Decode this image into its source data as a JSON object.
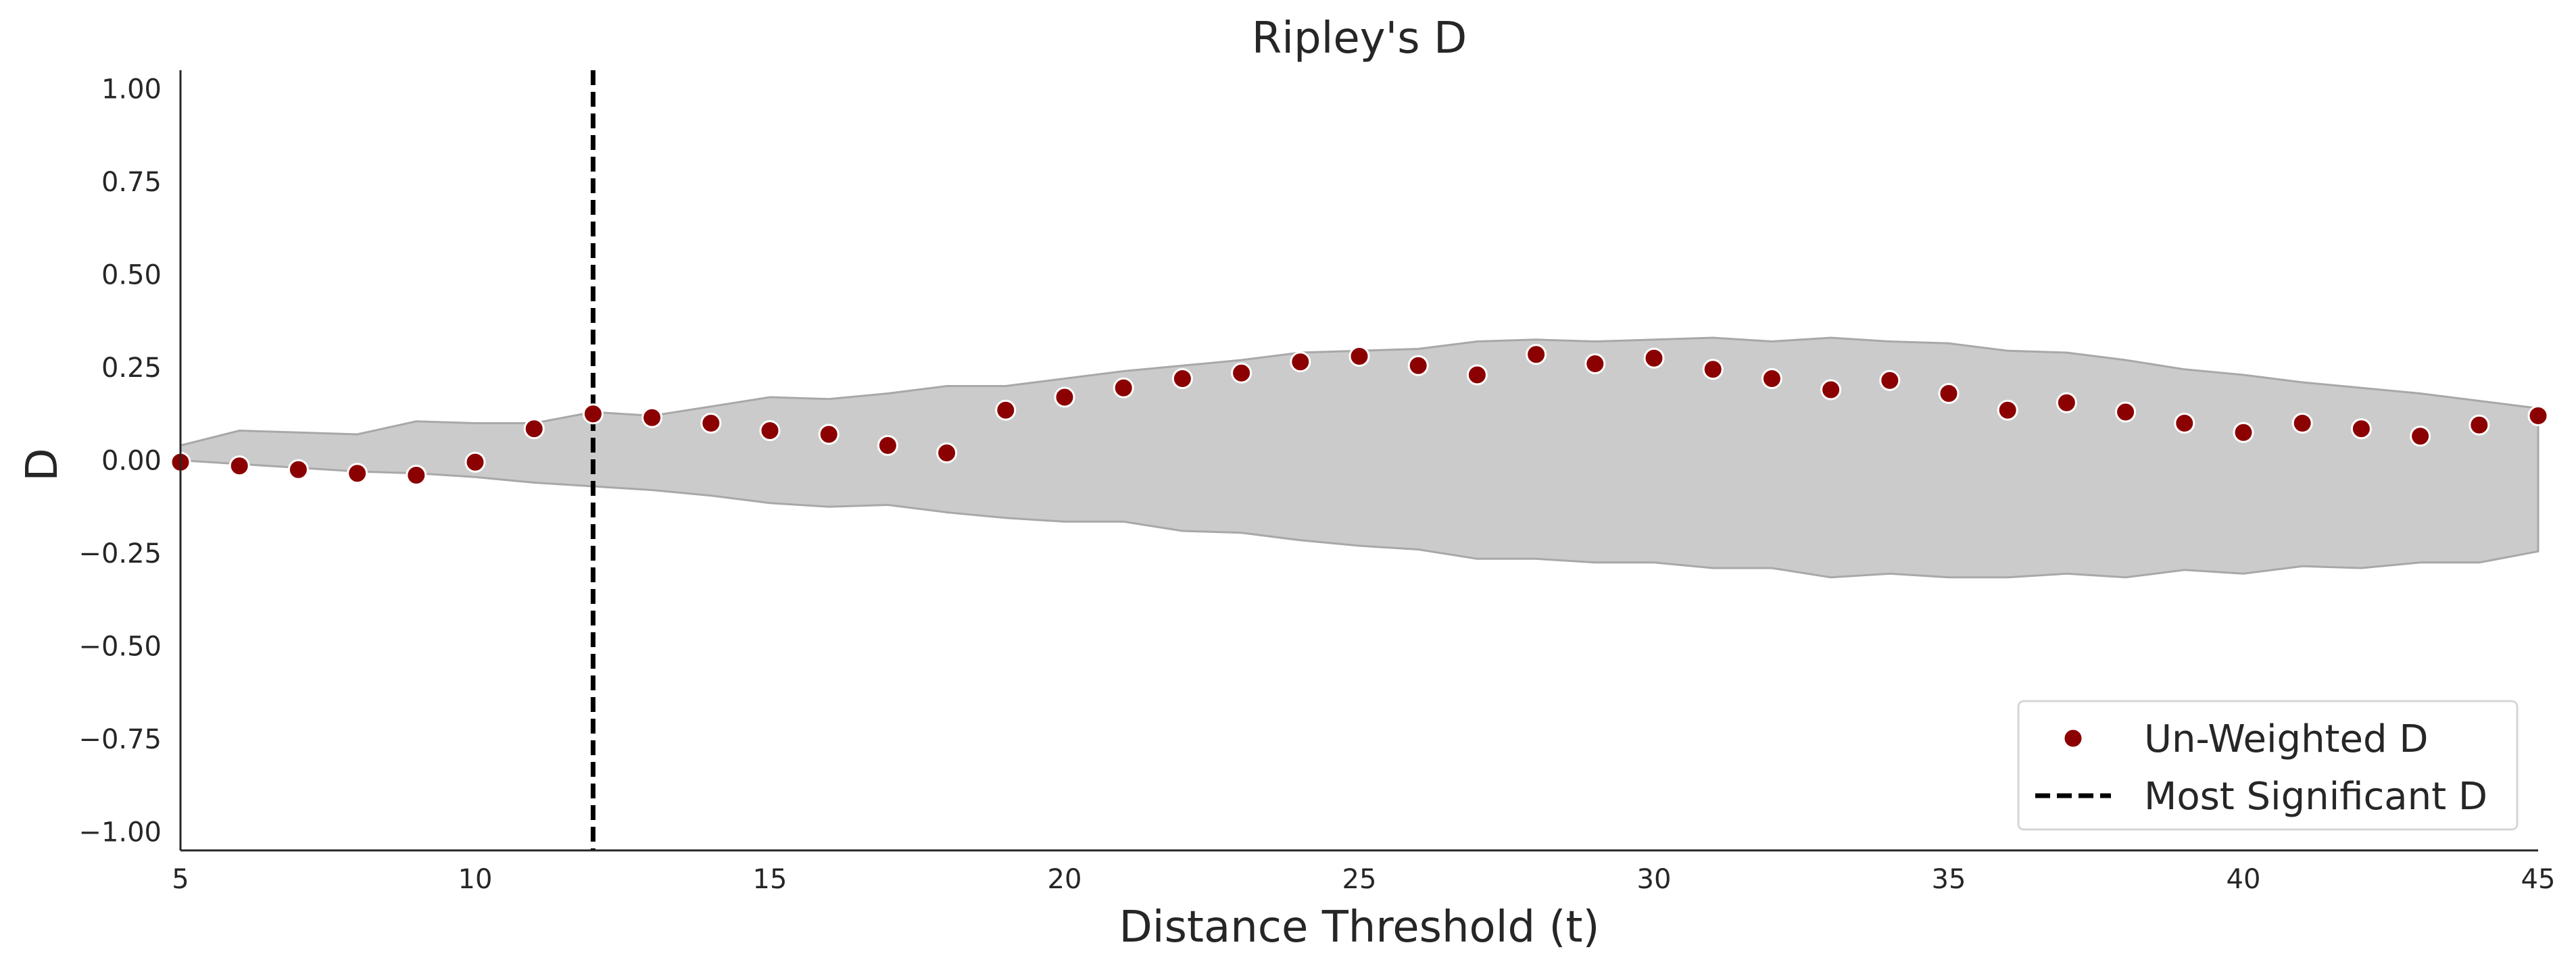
{
  "chart_data": {
    "type": "scatter",
    "title": "Ripley's D",
    "xlabel": "Distance Threshold (t)",
    "ylabel": "D",
    "xlim": [
      5,
      45
    ],
    "ylim": [
      -1.05,
      1.05
    ],
    "xticks": [
      5,
      10,
      15,
      20,
      25,
      30,
      35,
      40,
      45
    ],
    "yticks": [
      1.0,
      0.75,
      0.5,
      0.25,
      0.0,
      -0.25,
      -0.5,
      -0.75,
      -1.0
    ],
    "xtick_labels": [
      "5",
      "10",
      "15",
      "20",
      "25",
      "30",
      "35",
      "40",
      "45"
    ],
    "ytick_labels": [
      "1.00",
      "0.75",
      "0.50",
      "0.25",
      "0.00",
      "−0.25",
      "−0.50",
      "−0.75",
      "−1.00"
    ],
    "grid": false,
    "legend_position": "bottom-right",
    "colors": {
      "points": "#8b0000",
      "point_edge": "#ffffff",
      "envelope_fill": "#cbcbcb",
      "envelope_edge": "#a8a8a8",
      "vline": "#000000",
      "axis": "#262626"
    },
    "series": [
      {
        "name": "Un-Weighted D",
        "kind": "points",
        "x": [
          5,
          6,
          7,
          8,
          9,
          10,
          11,
          12,
          13,
          14,
          15,
          16,
          17,
          18,
          19,
          20,
          21,
          22,
          23,
          24,
          25,
          26,
          27,
          28,
          29,
          30,
          31,
          32,
          33,
          34,
          35,
          36,
          37,
          38,
          39,
          40,
          41,
          42,
          43,
          44,
          45
        ],
        "y": [
          -0.005,
          -0.015,
          -0.025,
          -0.035,
          -0.04,
          -0.005,
          0.085,
          0.125,
          0.115,
          0.1,
          0.08,
          0.07,
          0.04,
          0.02,
          0.135,
          0.17,
          0.195,
          0.22,
          0.235,
          0.265,
          0.28,
          0.255,
          0.23,
          0.285,
          0.26,
          0.275,
          0.245,
          0.22,
          0.19,
          0.215,
          0.18,
          0.135,
          0.155,
          0.13,
          0.1,
          0.075,
          0.1,
          0.085,
          0.065,
          0.095,
          0.12
        ]
      },
      {
        "name": "Most Significant D",
        "kind": "vline",
        "x": 12
      }
    ],
    "envelope": {
      "x": [
        5,
        6,
        7,
        8,
        9,
        10,
        11,
        12,
        13,
        14,
        15,
        16,
        17,
        18,
        19,
        20,
        21,
        22,
        23,
        24,
        25,
        26,
        27,
        28,
        29,
        30,
        31,
        32,
        33,
        34,
        35,
        36,
        37,
        38,
        39,
        40,
        41,
        42,
        43,
        44,
        45
      ],
      "upper": [
        0.04,
        0.08,
        0.075,
        0.07,
        0.105,
        0.1,
        0.1,
        0.13,
        0.12,
        0.145,
        0.17,
        0.165,
        0.18,
        0.2,
        0.2,
        0.22,
        0.24,
        0.255,
        0.27,
        0.29,
        0.295,
        0.3,
        0.32,
        0.325,
        0.32,
        0.325,
        0.33,
        0.32,
        0.33,
        0.32,
        0.315,
        0.295,
        0.29,
        0.27,
        0.245,
        0.23,
        0.21,
        0.195,
        0.18,
        0.16,
        0.14
      ],
      "lower": [
        0.0,
        -0.01,
        -0.02,
        -0.03,
        -0.035,
        -0.045,
        -0.06,
        -0.07,
        -0.08,
        -0.095,
        -0.115,
        -0.125,
        -0.12,
        -0.14,
        -0.155,
        -0.165,
        -0.165,
        -0.19,
        -0.195,
        -0.215,
        -0.23,
        -0.24,
        -0.265,
        -0.265,
        -0.275,
        -0.275,
        -0.29,
        -0.29,
        -0.315,
        -0.305,
        -0.315,
        -0.315,
        -0.305,
        -0.315,
        -0.295,
        -0.305,
        -0.285,
        -0.29,
        -0.275,
        -0.275,
        -0.245
      ]
    }
  }
}
